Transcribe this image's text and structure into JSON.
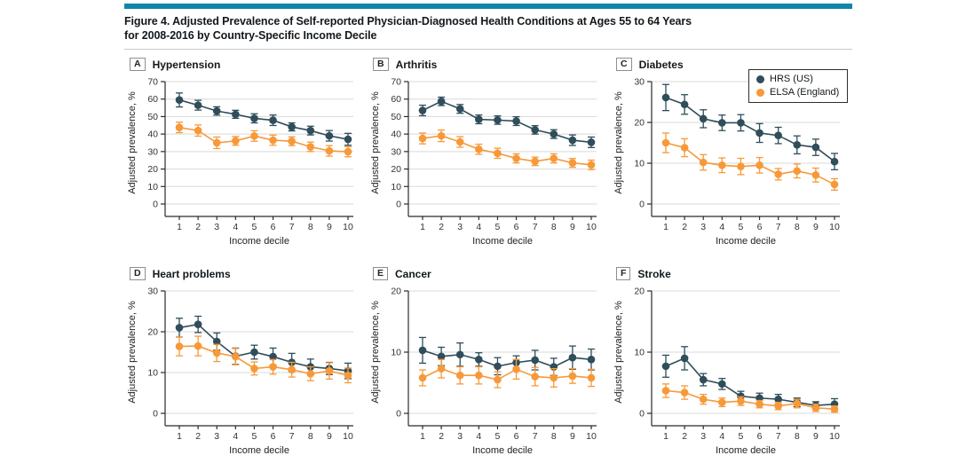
{
  "figure": {
    "title_line1": "Figure 4. Adjusted Prevalence of Self-reported Physician-Diagnosed Health Conditions at Ages 55 to 64 Years",
    "title_line2": "for 2008-2016 by Country-Specific Income Decile"
  },
  "colors": {
    "accent_bar": "#0e87a8",
    "hrs": "#2f4d5a",
    "elsa": "#f79939",
    "grid": "#d9d9d9",
    "axis": "#2b2b2b"
  },
  "legend": {
    "items": [
      {
        "label": "HRS (US)"
      },
      {
        "label": "ELSA (England)"
      }
    ]
  },
  "chart_data": [
    {
      "type": "line",
      "panel": "A",
      "title": "Hypertension",
      "xlabel": "Income decile",
      "ylabel": "Adjusted prevalence, %",
      "x": [
        1,
        2,
        3,
        4,
        5,
        6,
        7,
        8,
        9,
        10
      ],
      "ylim": [
        0,
        70
      ],
      "yticks": [
        0,
        10,
        20,
        30,
        40,
        50,
        60,
        70
      ],
      "grid": true,
      "series": [
        {
          "name": "HRS (US)",
          "color": "#2f4d5a",
          "values": [
            59.5,
            56.5,
            53.2,
            51.3,
            49.0,
            47.9,
            44.1,
            42.0,
            39.0,
            37.0
          ],
          "errors": [
            4.0,
            2.8,
            2.4,
            2.3,
            2.6,
            3.0,
            2.3,
            2.5,
            3.0,
            3.4
          ]
        },
        {
          "name": "ELSA (England)",
          "color": "#f79939",
          "values": [
            43.8,
            42.0,
            35.0,
            36.1,
            38.9,
            36.5,
            35.9,
            32.7,
            30.4,
            29.9
          ],
          "errors": [
            3.0,
            3.2,
            3.3,
            2.5,
            3.0,
            2.9,
            2.5,
            2.7,
            3.0,
            2.9
          ]
        }
      ]
    },
    {
      "type": "line",
      "panel": "B",
      "title": "Arthritis",
      "xlabel": "Income decile",
      "ylabel": "Adjusted prevalence, %",
      "x": [
        1,
        2,
        3,
        4,
        5,
        6,
        7,
        8,
        9,
        10
      ],
      "ylim": [
        0,
        70
      ],
      "yticks": [
        0,
        10,
        20,
        30,
        40,
        50,
        60,
        70
      ],
      "grid": true,
      "series": [
        {
          "name": "HRS (US)",
          "color": "#2f4d5a",
          "values": [
            53.5,
            58.7,
            54.4,
            48.4,
            48.0,
            47.4,
            42.4,
            40.0,
            36.5,
            35.3
          ],
          "errors": [
            3.0,
            2.4,
            2.5,
            2.5,
            2.4,
            2.5,
            2.4,
            2.5,
            3.0,
            3.0
          ]
        },
        {
          "name": "ELSA (England)",
          "color": "#f79939",
          "values": [
            37.5,
            39.0,
            35.5,
            31.3,
            29.0,
            26.1,
            24.4,
            26.1,
            23.5,
            22.4
          ],
          "errors": [
            3.1,
            3.3,
            3.0,
            2.9,
            2.9,
            2.6,
            2.4,
            2.6,
            2.5,
            2.7
          ]
        }
      ]
    },
    {
      "type": "line",
      "panel": "C",
      "title": "Diabetes",
      "xlabel": "Income decile",
      "ylabel": "Adjusted prevalence, %",
      "x": [
        1,
        2,
        3,
        4,
        5,
        6,
        7,
        8,
        9,
        10
      ],
      "ylim": [
        0,
        30
      ],
      "yticks": [
        0,
        10,
        20,
        30
      ],
      "grid": true,
      "legend": true,
      "legend_position": "top-right",
      "series": [
        {
          "name": "HRS (US)",
          "color": "#2f4d5a",
          "values": [
            26.1,
            24.4,
            20.9,
            19.9,
            19.9,
            17.4,
            16.8,
            14.5,
            13.9,
            10.4
          ],
          "errors": [
            3.2,
            2.4,
            2.2,
            1.9,
            2.0,
            2.3,
            2.0,
            2.2,
            2.0,
            2.0
          ]
        },
        {
          "name": "ELSA (England)",
          "color": "#f79939",
          "values": [
            15.0,
            13.8,
            10.2,
            9.5,
            9.2,
            9.5,
            7.3,
            8.1,
            7.1,
            4.8
          ],
          "errors": [
            2.4,
            2.2,
            1.9,
            1.8,
            2.0,
            1.9,
            1.4,
            1.7,
            1.7,
            1.4
          ]
        }
      ]
    },
    {
      "type": "line",
      "panel": "D",
      "title": "Heart problems",
      "xlabel": "Income decile",
      "ylabel": "Adjusted prevalence, %",
      "x": [
        1,
        2,
        3,
        4,
        5,
        6,
        7,
        8,
        9,
        10
      ],
      "ylim": [
        0,
        30
      ],
      "yticks": [
        0,
        10,
        20,
        30
      ],
      "grid": true,
      "series": [
        {
          "name": "HRS (US)",
          "color": "#2f4d5a",
          "values": [
            21.0,
            21.8,
            17.6,
            14.0,
            15.0,
            13.9,
            12.5,
            11.4,
            11.0,
            10.4
          ],
          "errors": [
            2.3,
            2.0,
            2.1,
            2.0,
            1.7,
            2.1,
            2.2,
            1.9,
            1.5,
            1.9
          ]
        },
        {
          "name": "ELSA (England)",
          "color": "#f79939",
          "values": [
            16.4,
            16.5,
            14.8,
            13.9,
            11.0,
            11.4,
            10.7,
            9.7,
            10.4,
            9.3
          ],
          "errors": [
            2.3,
            2.4,
            2.1,
            2.0,
            1.6,
            1.8,
            1.8,
            1.7,
            2.0,
            1.8
          ]
        }
      ]
    },
    {
      "type": "line",
      "panel": "E",
      "title": "Cancer",
      "xlabel": "Income decile",
      "ylabel": "Adjusted prevalence, %",
      "x": [
        1,
        2,
        3,
        4,
        5,
        6,
        7,
        8,
        9,
        10
      ],
      "ylim": [
        0,
        20
      ],
      "yticks": [
        0,
        10,
        20
      ],
      "grid": true,
      "series": [
        {
          "name": "HRS (US)",
          "color": "#2f4d5a",
          "values": [
            10.3,
            9.3,
            9.6,
            8.8,
            7.7,
            8.3,
            8.7,
            7.6,
            9.1,
            8.8
          ],
          "errors": [
            2.1,
            1.5,
            1.9,
            1.1,
            1.4,
            1.1,
            1.6,
            1.4,
            1.9,
            1.7
          ]
        },
        {
          "name": "ELSA (England)",
          "color": "#f79939",
          "values": [
            5.8,
            7.3,
            6.2,
            6.2,
            5.5,
            7.2,
            6.0,
            5.8,
            6.1,
            5.8
          ],
          "errors": [
            1.3,
            1.5,
            1.4,
            1.4,
            1.3,
            1.6,
            1.5,
            1.5,
            1.2,
            1.4
          ]
        }
      ]
    },
    {
      "type": "line",
      "panel": "F",
      "title": "Stroke",
      "xlabel": "Income decile",
      "ylabel": "Adjusted prevalence, %",
      "x": [
        1,
        2,
        3,
        4,
        5,
        6,
        7,
        8,
        9,
        10
      ],
      "ylim": [
        0,
        20
      ],
      "yticks": [
        0,
        10,
        20
      ],
      "grid": true,
      "series": [
        {
          "name": "HRS (US)",
          "color": "#2f4d5a",
          "values": [
            7.7,
            9.0,
            5.5,
            4.8,
            2.8,
            2.5,
            2.3,
            1.8,
            1.3,
            1.5
          ],
          "errors": [
            1.8,
            1.9,
            1.0,
            0.9,
            0.8,
            0.8,
            0.8,
            0.7,
            0.6,
            0.9
          ]
        },
        {
          "name": "ELSA (England)",
          "color": "#f79939",
          "values": [
            3.7,
            3.4,
            2.3,
            1.8,
            2.0,
            1.5,
            1.2,
            1.6,
            0.9,
            0.7
          ],
          "errors": [
            1.1,
            1.1,
            0.8,
            0.7,
            0.7,
            0.6,
            0.6,
            0.7,
            0.6,
            0.5
          ]
        }
      ]
    }
  ]
}
